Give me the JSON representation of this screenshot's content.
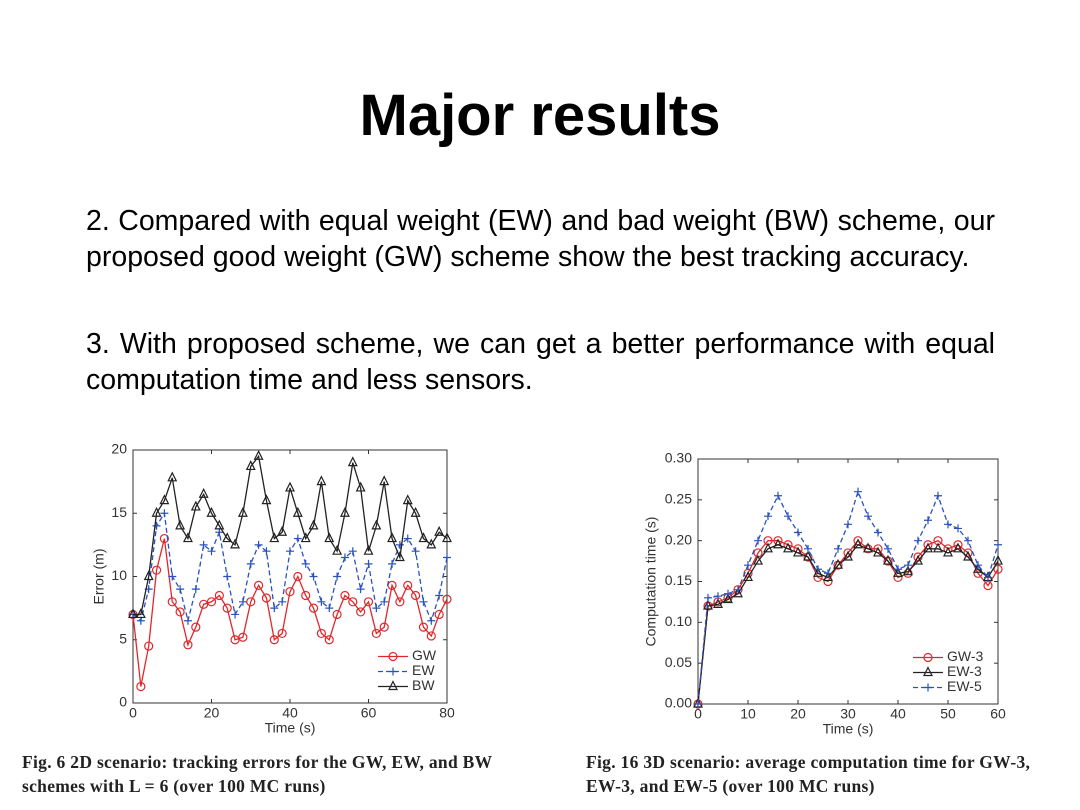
{
  "title": "Major results",
  "paragraphs": [
    "2. Compared with equal weight (EW) and bad weight (BW) scheme, our proposed good weight (GW) scheme show the best tracking accuracy.",
    "3. With proposed scheme, we can get a better performance with equal computation time and less sensors."
  ],
  "captions": [
    "Fig. 6  2D scenario: tracking errors for the GW, EW, and BW schemes with L = 6 (over 100 MC runs)",
    "Fig. 16  3D scenario: average computation time for GW-3, EW-3, and EW-5 (over 100 MC runs)"
  ],
  "chart_data": [
    {
      "type": "line",
      "xlabel": "Time (s)",
      "ylabel": "Error (m)",
      "x": [
        0,
        2,
        4,
        6,
        8,
        10,
        12,
        14,
        16,
        18,
        20,
        22,
        24,
        26,
        28,
        30,
        32,
        34,
        36,
        38,
        40,
        42,
        44,
        46,
        48,
        50,
        52,
        54,
        56,
        58,
        60,
        62,
        64,
        66,
        68,
        70,
        72,
        74,
        76,
        78,
        80
      ],
      "xlim": [
        0,
        80
      ],
      "xticks": [
        0,
        20,
        40,
        60,
        80
      ],
      "ylim": [
        0,
        20
      ],
      "yticks": [
        0,
        5,
        10,
        15,
        20
      ],
      "legend": "lower right",
      "series": [
        {
          "name": "GW",
          "color": "#e0272b",
          "marker": "circle",
          "dash": false,
          "values": [
            7,
            1.3,
            4.5,
            10.5,
            13,
            8,
            7.2,
            4.6,
            6,
            7.8,
            8,
            8.5,
            7.5,
            5,
            5.2,
            8,
            9.3,
            8.3,
            5,
            5.5,
            8.8,
            10,
            8.5,
            7.5,
            5.5,
            5,
            7,
            8.5,
            8,
            7.2,
            8,
            5.5,
            6,
            9.3,
            8,
            9.3,
            8.5,
            6,
            5.3,
            7,
            8.2
          ]
        },
        {
          "name": "EW",
          "color": "#2a52be",
          "marker": "plus",
          "dash": true,
          "values": [
            7,
            6.5,
            9,
            14,
            15,
            10,
            9,
            6.5,
            9,
            12.5,
            12,
            13.5,
            10,
            7,
            8,
            11,
            12.5,
            12,
            7.5,
            8,
            12,
            13,
            11,
            10,
            8,
            7.5,
            10,
            11.5,
            12,
            9,
            11,
            7.5,
            8,
            11,
            12.5,
            13,
            12,
            8,
            6.5,
            8.5,
            11.5
          ]
        },
        {
          "name": "BW",
          "color": "#222222",
          "marker": "triangle",
          "dash": false,
          "values": [
            7,
            7,
            10,
            15,
            16,
            17.8,
            14,
            13,
            15.5,
            16.5,
            15,
            14,
            13,
            12.5,
            15,
            18.7,
            19.5,
            16,
            13,
            13.5,
            17,
            15,
            13,
            14,
            17.5,
            13,
            12,
            15,
            19,
            17,
            12,
            14,
            17.5,
            13,
            11.5,
            16,
            15,
            13,
            12.5,
            13.5,
            13
          ]
        }
      ]
    },
    {
      "type": "line",
      "xlabel": "Time (s)",
      "ylabel": "Computation time (s)",
      "x": [
        0,
        2,
        4,
        6,
        8,
        10,
        12,
        14,
        16,
        18,
        20,
        22,
        24,
        26,
        28,
        30,
        32,
        34,
        36,
        38,
        40,
        42,
        44,
        46,
        48,
        50,
        52,
        54,
        56,
        58,
        60
      ],
      "xlim": [
        0,
        60
      ],
      "xticks": [
        0,
        10,
        20,
        30,
        40,
        50,
        60
      ],
      "ylim": [
        0,
        0.3
      ],
      "yticks": [
        {
          "value": 0,
          "label": "0.00"
        },
        0.05,
        {
          "value": 0.1,
          "label": "0.10"
        },
        0.15,
        {
          "value": 0.2,
          "label": "0.20"
        },
        0.25,
        {
          "value": 0.3,
          "label": "0.30"
        }
      ],
      "legend": "lower right",
      "series": [
        {
          "name": "GW-3",
          "color": "#e0272b",
          "marker": "circle",
          "dash": false,
          "values": [
            0,
            0.12,
            0.125,
            0.13,
            0.14,
            0.16,
            0.185,
            0.2,
            0.2,
            0.195,
            0.19,
            0.18,
            0.155,
            0.15,
            0.17,
            0.185,
            0.2,
            0.19,
            0.19,
            0.175,
            0.155,
            0.16,
            0.18,
            0.195,
            0.2,
            0.19,
            0.195,
            0.185,
            0.16,
            0.145,
            0.165
          ]
        },
        {
          "name": "EW-3",
          "color": "#222222",
          "marker": "triangle",
          "dash": false,
          "values": [
            0,
            0.12,
            0.122,
            0.128,
            0.135,
            0.155,
            0.175,
            0.19,
            0.195,
            0.19,
            0.185,
            0.18,
            0.16,
            0.155,
            0.17,
            0.18,
            0.195,
            0.19,
            0.185,
            0.175,
            0.16,
            0.162,
            0.175,
            0.19,
            0.19,
            0.185,
            0.19,
            0.18,
            0.165,
            0.155,
            0.175
          ]
        },
        {
          "name": "EW-5",
          "color": "#2a52be",
          "marker": "plus",
          "dash": true,
          "values": [
            0,
            0.13,
            0.132,
            0.135,
            0.14,
            0.17,
            0.2,
            0.23,
            0.255,
            0.23,
            0.21,
            0.19,
            0.165,
            0.16,
            0.19,
            0.22,
            0.26,
            0.23,
            0.21,
            0.19,
            0.165,
            0.17,
            0.2,
            0.225,
            0.255,
            0.22,
            0.215,
            0.2,
            0.17,
            0.155,
            0.195
          ]
        }
      ]
    }
  ]
}
